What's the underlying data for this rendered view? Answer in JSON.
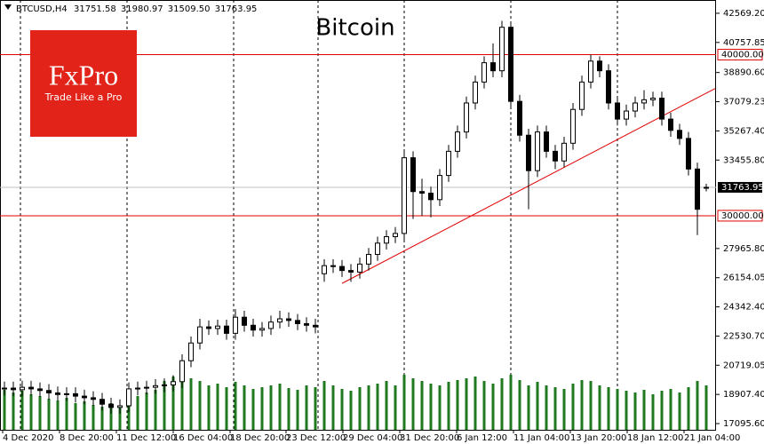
{
  "chart_data": {
    "type": "candlestick",
    "title": "Bitcoin",
    "header": {
      "symbol": "BTCUSD,H4",
      "quote": [
        "31751.58",
        "31980.97",
        "31509.50",
        "31763.95"
      ]
    },
    "logo": {
      "brand": "FxPro",
      "tagline": "Trade Like a Pro",
      "color": "#e2231a"
    },
    "open": [
      19250,
      19300,
      19200,
      19350,
      19250,
      19150,
      19000,
      18900,
      18950,
      18800,
      18700,
      18600,
      18300,
      18100,
      18200,
      19250,
      19300,
      19350,
      19450,
      19500,
      19700,
      21000,
      22100,
      23100,
      23000,
      23150,
      22700,
      23700,
      23200,
      22900,
      23000,
      23400,
      23600,
      23500,
      23300,
      23200,
      26400,
      26900,
      26850,
      26600,
      26500,
      27000,
      27600,
      28300,
      28700,
      28900,
      33600,
      31500,
      31400,
      31000,
      32500,
      34000,
      35200,
      37000,
      38300,
      39500,
      39000,
      41700,
      37100,
      35000,
      32800,
      35200,
      34000,
      33400,
      34500,
      36600,
      38300,
      39600,
      39000,
      37000,
      36000,
      36500,
      37000,
      37200,
      37300,
      36000,
      35300,
      34800,
      32900,
      31751.58
    ],
    "high": [
      19700,
      19700,
      19750,
      19750,
      19650,
      19550,
      19400,
      19350,
      19350,
      19200,
      19100,
      19000,
      18700,
      18600,
      19650,
      19700,
      19750,
      19850,
      19900,
      20100,
      21400,
      22500,
      23600,
      23500,
      23550,
      23550,
      24200,
      24100,
      23600,
      23400,
      23800,
      24100,
      24000,
      23900,
      23700,
      23600,
      27300,
      27300,
      27250,
      27000,
      27400,
      28000,
      28700,
      29100,
      29300,
      34000,
      34000,
      32300,
      31800,
      32900,
      34400,
      35600,
      37400,
      38700,
      39900,
      40700,
      42100,
      42000,
      37500,
      35400,
      35600,
      35600,
      34400,
      34900,
      37000,
      38700,
      40000,
      39900,
      39400,
      37400,
      36900,
      37400,
      37800,
      37700,
      37700,
      36400,
      35700,
      35200,
      33300,
      31980.97
    ],
    "low": [
      18850,
      18800,
      18800,
      18850,
      18750,
      18600,
      18500,
      18500,
      18400,
      18300,
      18200,
      17900,
      17700,
      17700,
      17800,
      18850,
      18900,
      18950,
      19050,
      19100,
      19300,
      20600,
      21700,
      22600,
      22600,
      22300,
      22300,
      22800,
      22500,
      22500,
      22600,
      23000,
      23100,
      22900,
      22800,
      22700,
      25900,
      26450,
      26200,
      25900,
      26100,
      26600,
      27200,
      27900,
      28300,
      28400,
      29800,
      30000,
      29900,
      30600,
      32100,
      33600,
      34800,
      36600,
      37900,
      38600,
      38600,
      36700,
      34600,
      30400,
      32400,
      33600,
      32900,
      33000,
      34100,
      36200,
      37900,
      38600,
      36600,
      35600,
      35600,
      36100,
      36600,
      36800,
      35600,
      34900,
      34400,
      32500,
      28800,
      31509.5
    ],
    "close": [
      19300,
      19200,
      19350,
      19250,
      19150,
      19000,
      18900,
      18950,
      18800,
      18700,
      18600,
      18300,
      18100,
      18200,
      19250,
      19300,
      19350,
      19450,
      19500,
      19700,
      21000,
      22100,
      23100,
      23000,
      23150,
      22700,
      23700,
      23200,
      22900,
      23000,
      23400,
      23600,
      23500,
      23300,
      23200,
      23100,
      26900,
      26850,
      26600,
      26500,
      27000,
      27600,
      28300,
      28700,
      28900,
      33600,
      31500,
      31400,
      31000,
      32500,
      34000,
      35200,
      37000,
      38300,
      39500,
      39000,
      41700,
      37100,
      35000,
      32800,
      35200,
      34000,
      33400,
      34500,
      36600,
      38300,
      39600,
      39000,
      37000,
      36000,
      36500,
      37000,
      37200,
      37300,
      36000,
      35300,
      34800,
      32900,
      30400,
      31763.95
    ],
    "volume": [
      45,
      42,
      44,
      40,
      38,
      35,
      33,
      36,
      30,
      32,
      28,
      26,
      30,
      25,
      40,
      38,
      42,
      45,
      55,
      60,
      62,
      58,
      55,
      50,
      52,
      48,
      54,
      50,
      46,
      48,
      50,
      52,
      47,
      45,
      50,
      48,
      55,
      50,
      46,
      44,
      48,
      50,
      52,
      55,
      50,
      62,
      58,
      55,
      52,
      50,
      54,
      56,
      58,
      60,
      55,
      52,
      58,
      62,
      56,
      50,
      54,
      50,
      48,
      46,
      52,
      56,
      55,
      50,
      48,
      46,
      44,
      42,
      45,
      40,
      44,
      46,
      42,
      48,
      55,
      50
    ],
    "volume_color": "#1f7a1f",
    "ylim": [
      16711,
      43393
    ],
    "yticks": [
      {
        "value": 42569.2,
        "label": "42569.20"
      },
      40757.85,
      {
        "value": 38890.6,
        "label": "38890.60"
      },
      37079.23,
      {
        "value": 35267.4,
        "label": "35267.40"
      },
      {
        "value": 33455.8,
        "label": "33455.80"
      },
      {
        "value": 27965.8,
        "label": "27965.80"
      },
      26154.05,
      {
        "value": 24342.4,
        "label": "24342.40"
      },
      {
        "value": 22530.7,
        "label": "22530.70"
      },
      20719.05,
      {
        "value": 18907.4,
        "label": "18907.40"
      },
      {
        "value": 17095.6,
        "label": "17095.60"
      }
    ],
    "xlim": [
      -0.5,
      80.1
    ],
    "xticks": [
      {
        "value": -0.2,
        "label": "4 Dec 2020"
      },
      {
        "value": 6.2,
        "label": "8 Dec 20:00"
      },
      {
        "value": 12.6,
        "label": "11 Dec 12:00"
      },
      {
        "value": 19,
        "label": "16 Dec 04:00"
      },
      {
        "value": 25.4,
        "label": "18 Dec 20:00"
      },
      {
        "value": 31.7,
        "label": "23 Dec 12:00"
      },
      {
        "value": 38.1,
        "label": "29 Dec 04:00"
      },
      {
        "value": 44.5,
        "label": "31 Dec 20:00"
      },
      {
        "value": 50.9,
        "label": "6 Jan 12:00"
      },
      {
        "value": 57.3,
        "label": "11 Jan 04:00"
      },
      {
        "value": 63.7,
        "label": "13 Jan 20:00"
      },
      {
        "value": 70.1,
        "label": "18 Jan 12:00"
      },
      {
        "value": 76.5,
        "label": "21 Jan 04:00"
      }
    ],
    "separators": [
      1.8,
      13.8,
      25.8,
      35.3,
      45,
      57,
      69
    ],
    "levels": [
      {
        "value": 40000,
        "label": "40000.00"
      },
      {
        "value": 30000,
        "label": "30000.00"
      }
    ],
    "level_color": "#e00000",
    "trendline": {
      "color": "#e00000",
      "x": [
        38,
        80
      ],
      "y": [
        25800,
        37900
      ]
    }
  }
}
